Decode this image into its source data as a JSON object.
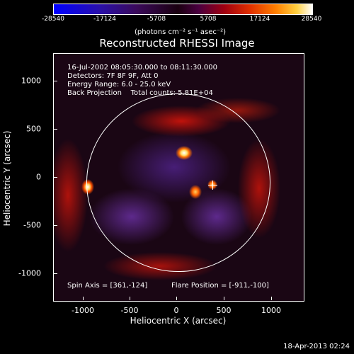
{
  "colorbar": {
    "ticks": [
      "-28540",
      "-17124",
      "-5708",
      "5708",
      "17124",
      "28540"
    ],
    "units": "(photons cm⁻² s⁻¹ asec⁻²)"
  },
  "plot": {
    "title": "Reconstructed RHESSI Image",
    "info_lines": [
      "16-Jul-2002 08:05:30.000 to 08:11:30.000",
      "Detectors: 7F 8F 9F, Att 0",
      "Energy Range: 6.0 - 25.0 keV",
      "Back Projection    Total counts: 5.81E+04"
    ],
    "spin_axis": "Spin Axis = [361,-124]",
    "flare_position": "Flare Position = [-911,-100]",
    "xlabel": "Heliocentric X (arcsec)",
    "ylabel": "Heliocentric Y (arcsec)",
    "xticks": [
      "-1000",
      "-500",
      "0",
      "500",
      "1000"
    ],
    "yticks": [
      "1000",
      "500",
      "0",
      "-500",
      "-1000"
    ]
  },
  "footer": {
    "date": "18-Apr-2013 02:24"
  }
}
